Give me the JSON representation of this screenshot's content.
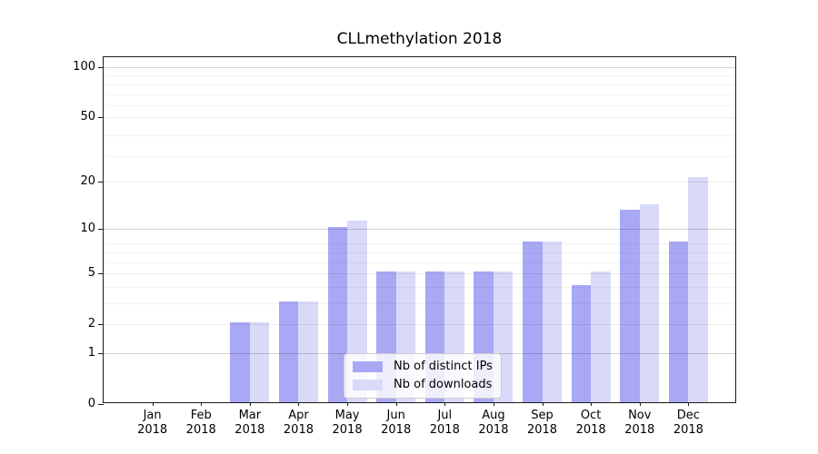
{
  "figure": {
    "title": "CLLmethylation 2018"
  },
  "chart_data": {
    "type": "bar",
    "title": "CLLmethylation 2018",
    "categories": [
      "Jan",
      "Feb",
      "Mar",
      "Apr",
      "May",
      "Jun",
      "Jul",
      "Aug",
      "Sep",
      "Oct",
      "Nov",
      "Dec"
    ],
    "category_year": "2018",
    "series": [
      {
        "name": "Nb of distinct IPs",
        "color": "#a8a8f5",
        "values": [
          0,
          0,
          2,
          3,
          10,
          5,
          5,
          5,
          8,
          4,
          13,
          8
        ]
      },
      {
        "name": "Nb of downloads",
        "color": "#d9d9f8",
        "values": [
          0,
          0,
          2,
          3,
          11,
          5,
          5,
          5,
          8,
          5,
          14,
          21
        ]
      }
    ],
    "yscale": "log1p",
    "ylim": [
      0,
      115
    ],
    "y_ticks": [
      0,
      1,
      2,
      5,
      10,
      20,
      50,
      100
    ],
    "y_decade_gridlines": [
      1,
      10,
      100
    ],
    "y_minor_gridlines": [
      3,
      4,
      6,
      7,
      8,
      29,
      39,
      59,
      69,
      79,
      89
    ],
    "grid": true,
    "legend_position": "lower center",
    "legend": [
      "Nb of distinct IPs",
      "Nb of downloads"
    ]
  }
}
